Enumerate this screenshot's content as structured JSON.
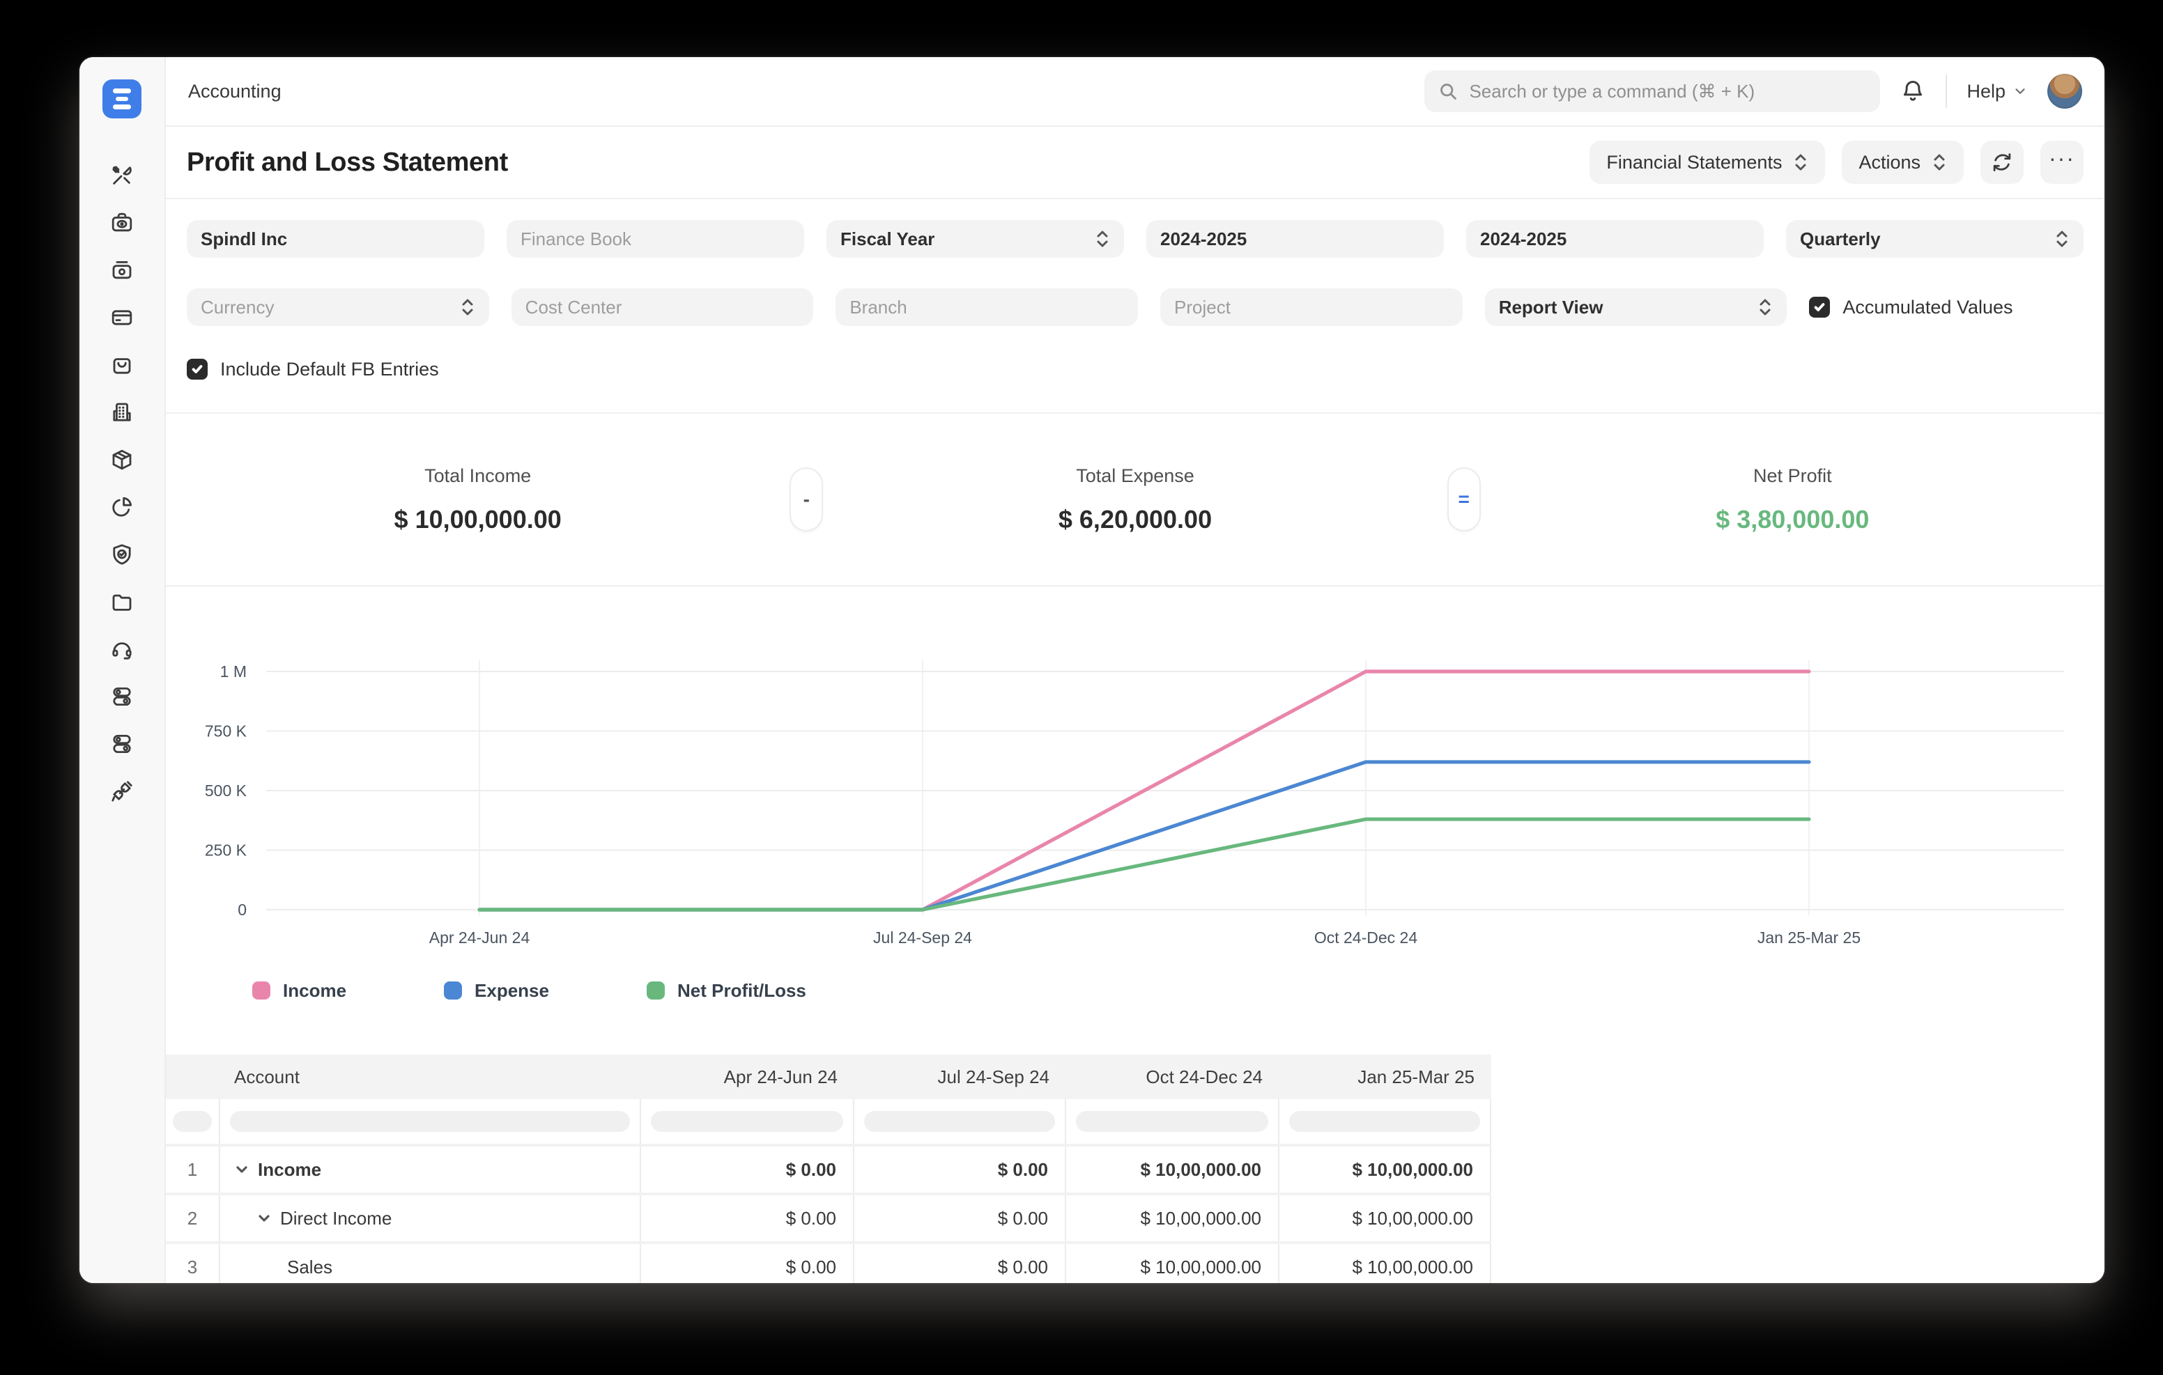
{
  "topbar": {
    "breadcrumb": "Accounting",
    "search_placeholder": "Search or type a command (⌘ + K)",
    "help_label": "Help"
  },
  "header": {
    "title": "Profit and Loss Statement",
    "report_group_button": "Financial Statements",
    "actions_button": "Actions"
  },
  "filters": {
    "company_value": "Spindl Inc",
    "finance_book_placeholder": "Finance Book",
    "period_basis_value": "Fiscal Year",
    "from_fiscal_year_value": "2024-2025",
    "to_fiscal_year_value": "2024-2025",
    "periodicity_value": "Quarterly",
    "currency_placeholder": "Currency",
    "cost_center_placeholder": "Cost Center",
    "branch_placeholder": "Branch",
    "project_placeholder": "Project",
    "report_view_value": "Report View",
    "accumulated_values_label": "Accumulated Values",
    "accumulated_values_checked": true,
    "include_default_fb_label": "Include Default FB Entries",
    "include_default_fb_checked": true
  },
  "summary": {
    "income_label": "Total Income",
    "income_value": "$ 10,00,000.00",
    "minus_sign": "-",
    "expense_label": "Total Expense",
    "expense_value": "$ 6,20,000.00",
    "equals_sign": "=",
    "net_label": "Net Profit",
    "net_value": "$ 3,80,000.00",
    "net_color": "#68b87e"
  },
  "chart_data": {
    "type": "line",
    "categories": [
      "Apr 24-Jun 24",
      "Jul 24-Sep 24",
      "Oct 24-Dec 24",
      "Jan 25-Mar 25"
    ],
    "series": [
      {
        "name": "Income",
        "color": "#e985ab",
        "values": [
          0,
          0,
          1000000,
          1000000
        ]
      },
      {
        "name": "Expense",
        "color": "#4b87d2",
        "values": [
          0,
          0,
          620000,
          620000
        ]
      },
      {
        "name": "Net Profit/Loss",
        "color": "#68b87e",
        "values": [
          0,
          0,
          380000,
          380000
        ]
      }
    ],
    "y_ticks": [
      {
        "v": 0,
        "label": "0"
      },
      {
        "v": 250000,
        "label": "250 K"
      },
      {
        "v": 500000,
        "label": "500 K"
      },
      {
        "v": 750000,
        "label": "750 K"
      },
      {
        "v": 1000000,
        "label": "1 M"
      }
    ],
    "ylim": [
      0,
      1000000
    ],
    "grid": true,
    "legend_position": "bottom"
  },
  "table": {
    "columns": [
      "Account",
      "Apr 24-Jun 24",
      "Jul 24-Sep 24",
      "Oct 24-Dec 24",
      "Jan 25-Mar 25"
    ],
    "rows": [
      {
        "idx": "1",
        "account": "Income",
        "values": [
          "$ 0.00",
          "$ 0.00",
          "$ 10,00,000.00",
          "$ 10,00,000.00"
        ]
      },
      {
        "idx": "2",
        "account": "Direct Income",
        "values": [
          "$ 0.00",
          "$ 0.00",
          "$ 10,00,000.00",
          "$ 10,00,000.00"
        ]
      },
      {
        "idx": "3",
        "account": "Sales",
        "values": [
          "$ 0.00",
          "$ 0.00",
          "$ 10,00,000.00",
          "$ 10,00,000.00"
        ]
      }
    ]
  },
  "sidebar": {
    "icon_names": [
      "tools",
      "payments",
      "assets",
      "credit-card",
      "selling",
      "organization",
      "stock",
      "analytics",
      "quality",
      "projects",
      "support",
      "settings-a",
      "settings-b",
      "integrations"
    ]
  },
  "colors": {
    "brand_blue": "#3f7ee8",
    "equals_blue": "#3d74e0"
  }
}
